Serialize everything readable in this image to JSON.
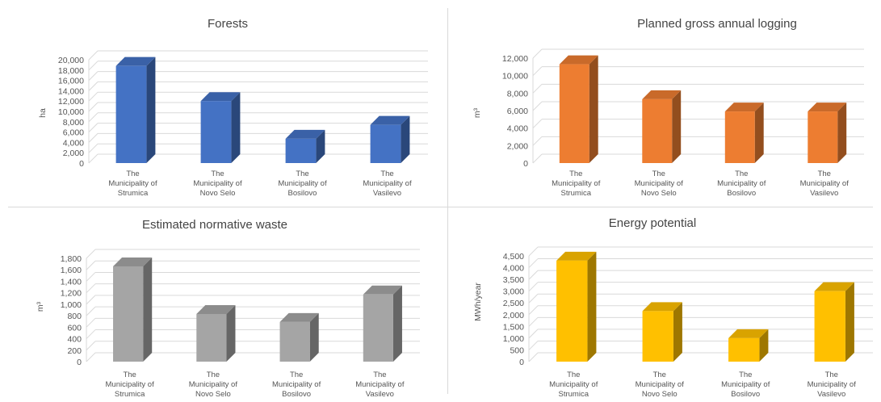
{
  "chart_data": [
    {
      "type": "bar",
      "title": "Forests",
      "ylabel": "ha",
      "xlabel": "",
      "categories": [
        [
          "The",
          "Municipality of",
          "Strumica"
        ],
        [
          "The",
          "Municipality of",
          "Novo Selo"
        ],
        [
          "The",
          "Municipality of",
          "Bosilovo"
        ],
        [
          "The",
          "Municipality of",
          "Vasilevo"
        ]
      ],
      "values": [
        18800,
        12000,
        4700,
        7400
      ],
      "ylim": [
        0,
        20000
      ],
      "yticks": [
        "0",
        "2,000",
        "4,000",
        "6,000",
        "8,000",
        "10,000",
        "12,000",
        "14,000",
        "16,000",
        "18,000",
        "20,000"
      ],
      "grid": true,
      "color": "#4472C4"
    },
    {
      "type": "bar",
      "title": "Planned gross annual logging",
      "ylabel": "m³",
      "xlabel": "",
      "categories": [
        [
          "The",
          "Municipality of",
          "Strumica"
        ],
        [
          "The",
          "Municipality of",
          "Novo Selo"
        ],
        [
          "The",
          "Municipality of",
          "Bosilovo"
        ],
        [
          "The",
          "Municipality of",
          "Vasilevo"
        ]
      ],
      "values": [
        11300,
        7300,
        5900,
        5900
      ],
      "ylim": [
        0,
        12000
      ],
      "yticks": [
        "0",
        "2,000",
        "4,000",
        "6,000",
        "8,000",
        "10,000",
        "12,000"
      ],
      "grid": true,
      "color": "#ED7D31"
    },
    {
      "type": "bar",
      "title": "Estimated normative waste",
      "ylabel": "m³",
      "xlabel": "",
      "categories": [
        [
          "The",
          "Municipality of",
          "Strumica"
        ],
        [
          "The",
          "Municipality of",
          "Novo Selo"
        ],
        [
          "The",
          "Municipality of",
          "Bosilovo"
        ],
        [
          "The",
          "Municipality of",
          "Vasilevo"
        ]
      ],
      "values": [
        1660,
        830,
        690,
        1170
      ],
      "ylim": [
        0,
        1800
      ],
      "yticks": [
        "0",
        "200",
        "400",
        "600",
        "800",
        "1,000",
        "1,200",
        "1,400",
        "1,600",
        "1,800"
      ],
      "grid": true,
      "color": "#A5A5A5"
    },
    {
      "type": "bar",
      "title": "Energy potential",
      "ylabel": "MWh/year",
      "xlabel": "",
      "categories": [
        [
          "The",
          "Municipality of",
          "Strumica"
        ],
        [
          "The",
          "Municipality of",
          "Novo Selo"
        ],
        [
          "The",
          "Municipality of",
          "Bosilovo"
        ],
        [
          "The",
          "Municipality of",
          "Vasilevo"
        ]
      ],
      "values": [
        4300,
        2150,
        1000,
        3000
      ],
      "ylim": [
        0,
        4500
      ],
      "yticks": [
        "0",
        "500",
        "1,000",
        "1,500",
        "2,000",
        "2,500",
        "3,000",
        "3,500",
        "4,000",
        "4,500"
      ],
      "grid": true,
      "color": "#FFC000"
    }
  ]
}
